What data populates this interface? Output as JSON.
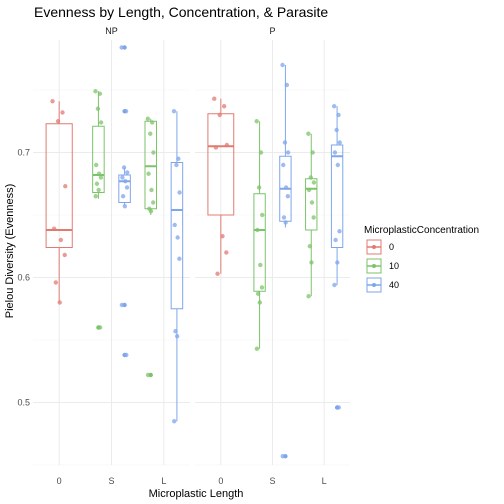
{
  "chart_data": {
    "type": "box",
    "title": "Evenness by Length, Concentration, & Parasite",
    "xlabel": "Microplastic Length",
    "ylabel": "Pielou Diversity (Evenness)",
    "categories": [
      "0",
      "S",
      "L"
    ],
    "facets": [
      "NP",
      "P"
    ],
    "ylim": [
      0.45,
      0.79
    ],
    "yticks": [
      0.5,
      0.6,
      0.7
    ],
    "grid": true,
    "legend": {
      "title": "MicroplasticConcentration",
      "position": "right",
      "entries": [
        {
          "label": "0",
          "color": "#E07B71"
        },
        {
          "label": "10",
          "color": "#7CC36A"
        },
        {
          "label": "40",
          "color": "#7FA6EC"
        }
      ]
    },
    "boxes": [
      {
        "facet": "NP",
        "category": "0",
        "concentration": "0",
        "min": 0.58,
        "q1": 0.624,
        "median": 0.638,
        "q3": 0.723,
        "max": 0.741,
        "outliers": [],
        "points": [
          0.741,
          0.732,
          0.725,
          0.673,
          0.639,
          0.63,
          0.618,
          0.596,
          0.58
        ]
      },
      {
        "facet": "NP",
        "category": "S",
        "concentration": "10",
        "min": 0.663,
        "q1": 0.668,
        "median": 0.682,
        "q3": 0.721,
        "max": 0.749,
        "outliers": [
          0.56
        ],
        "points": [
          0.749,
          0.747,
          0.735,
          0.724,
          0.69,
          0.683,
          0.68,
          0.675,
          0.67,
          0.665,
          0.56
        ]
      },
      {
        "facet": "NP",
        "category": "S",
        "concentration": "40",
        "min": 0.658,
        "q1": 0.66,
        "median": 0.677,
        "q3": 0.682,
        "max": 0.688,
        "outliers": [
          0.784,
          0.733,
          0.578,
          0.538
        ],
        "points": [
          0.784,
          0.733,
          0.688,
          0.684,
          0.68,
          0.677,
          0.672,
          0.665,
          0.657,
          0.578,
          0.538
        ]
      },
      {
        "facet": "NP",
        "category": "L",
        "concentration": "10",
        "min": 0.65,
        "q1": 0.655,
        "median": 0.689,
        "q3": 0.725,
        "max": 0.727,
        "outliers": [
          0.522
        ],
        "points": [
          0.727,
          0.724,
          0.715,
          0.7,
          0.683,
          0.67,
          0.66,
          0.655,
          0.653,
          0.522
        ]
      },
      {
        "facet": "NP",
        "category": "L",
        "concentration": "40",
        "min": 0.485,
        "q1": 0.575,
        "median": 0.654,
        "q3": 0.692,
        "max": 0.733,
        "outliers": [],
        "points": [
          0.733,
          0.695,
          0.69,
          0.668,
          0.642,
          0.632,
          0.615,
          0.557,
          0.553,
          0.485
        ]
      },
      {
        "facet": "P",
        "category": "0",
        "concentration": "0",
        "min": 0.603,
        "q1": 0.65,
        "median": 0.705,
        "q3": 0.731,
        "max": 0.743,
        "outliers": [],
        "points": [
          0.743,
          0.737,
          0.73,
          0.706,
          0.704,
          0.633,
          0.62,
          0.603
        ]
      },
      {
        "facet": "P",
        "category": "S",
        "concentration": "10",
        "min": 0.543,
        "q1": 0.589,
        "median": 0.638,
        "q3": 0.667,
        "max": 0.725,
        "outliers": [],
        "points": [
          0.725,
          0.7,
          0.672,
          0.65,
          0.638,
          0.61,
          0.592,
          0.587,
          0.58,
          0.543
        ]
      },
      {
        "facet": "P",
        "category": "S",
        "concentration": "40",
        "min": 0.64,
        "q1": 0.645,
        "median": 0.671,
        "q3": 0.697,
        "max": 0.77,
        "outliers": [
          0.457
        ],
        "points": [
          0.77,
          0.754,
          0.708,
          0.7,
          0.69,
          0.672,
          0.665,
          0.648,
          0.644,
          0.457
        ]
      },
      {
        "facet": "P",
        "category": "L",
        "concentration": "10",
        "min": 0.585,
        "q1": 0.638,
        "median": 0.671,
        "q3": 0.679,
        "max": 0.715,
        "outliers": [],
        "points": [
          0.715,
          0.7,
          0.68,
          0.676,
          0.67,
          0.66,
          0.648,
          0.625,
          0.612,
          0.585
        ]
      },
      {
        "facet": "P",
        "category": "L",
        "concentration": "40",
        "min": 0.594,
        "q1": 0.624,
        "median": 0.697,
        "q3": 0.706,
        "max": 0.737,
        "outliers": [
          0.496
        ],
        "points": [
          0.737,
          0.73,
          0.718,
          0.708,
          0.7,
          0.69,
          0.637,
          0.63,
          0.612,
          0.594,
          0.496
        ]
      }
    ]
  }
}
